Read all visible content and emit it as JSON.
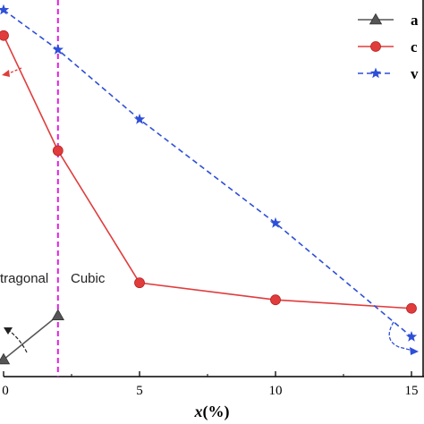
{
  "chart_data": {
    "type": "line",
    "x": [
      0,
      2,
      5,
      10,
      15
    ],
    "xlim": [
      0,
      15
    ],
    "xticks": [
      "0",
      "5",
      "10",
      "15"
    ],
    "xlabel_var": "x",
    "xlabel_unit": "(%)",
    "series": [
      {
        "name": "a",
        "values": [
          0.02,
          0.33,
          null,
          null,
          null
        ],
        "color": "#555555",
        "marker": "triangle",
        "dash": "solid"
      },
      {
        "name": "c",
        "values": [
          2.3,
          1.49,
          0.56,
          0.44,
          0.38
        ],
        "color": "#e03c3c",
        "marker": "circle",
        "dash": "solid"
      },
      {
        "name": "v",
        "values": [
          2.48,
          2.2,
          1.71,
          0.98,
          0.18
        ],
        "color": "#2e4fd8",
        "marker": "star",
        "dash": "dashed"
      }
    ],
    "ylim": [
      -0.1,
      2.55
    ],
    "phase_boundary_x": 2,
    "phase_boundary_color": "#e020e0",
    "annotations": {
      "left_phase": "tragonal",
      "right_phase": "Cubic"
    },
    "legend_position": "top-right"
  }
}
